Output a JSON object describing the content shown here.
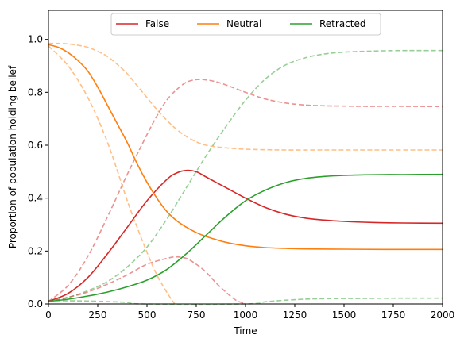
{
  "chart_data": {
    "type": "line",
    "title": "",
    "xlabel": "Time",
    "ylabel": "Proportion of population holding belief",
    "xlim": [
      0,
      2000
    ],
    "ylim": [
      0,
      1.11
    ],
    "x_ticks": [
      0,
      250,
      500,
      750,
      1000,
      1250,
      1500,
      1750,
      2000
    ],
    "x_tick_labels": [
      "0",
      "250",
      "500",
      "750",
      "1000",
      "1250",
      "1500",
      "1750",
      "2000"
    ],
    "y_ticks": [
      0.0,
      0.2,
      0.4,
      0.6,
      0.8,
      1.0
    ],
    "y_tick_labels": [
      "0.0",
      "0.2",
      "0.4",
      "0.6",
      "0.8",
      "1.0"
    ],
    "grid": false,
    "legend": {
      "placement": "upper-center",
      "entries": [
        {
          "name": "False",
          "color": "#d62728"
        },
        {
          "name": "Neutral",
          "color": "#ff7f0e"
        },
        {
          "name": "Retracted",
          "color": "#2ca02c"
        }
      ]
    },
    "series": [
      {
        "name": "False",
        "color": "#d62728",
        "style": "solid",
        "x": [
          0,
          100,
          200,
          300,
          400,
          500,
          600,
          650,
          700,
          750,
          800,
          900,
          1000,
          1100,
          1200,
          1300,
          1400,
          1500,
          1600,
          1700,
          1800,
          2000
        ],
        "y": [
          0.01,
          0.04,
          0.1,
          0.19,
          0.29,
          0.39,
          0.47,
          0.495,
          0.505,
          0.5,
          0.48,
          0.44,
          0.4,
          0.365,
          0.34,
          0.325,
          0.317,
          0.312,
          0.309,
          0.307,
          0.306,
          0.305
        ]
      },
      {
        "name": "Neutral",
        "color": "#ff7f0e",
        "style": "solid",
        "x": [
          0,
          50,
          100,
          150,
          200,
          250,
          300,
          350,
          400,
          450,
          500,
          550,
          600,
          650,
          700,
          750,
          800,
          900,
          1000,
          1100,
          1200,
          1300,
          1500,
          1700,
          2000
        ],
        "y": [
          0.98,
          0.97,
          0.95,
          0.92,
          0.88,
          0.82,
          0.75,
          0.68,
          0.61,
          0.53,
          0.46,
          0.4,
          0.35,
          0.315,
          0.29,
          0.27,
          0.255,
          0.233,
          0.22,
          0.213,
          0.21,
          0.208,
          0.207,
          0.206,
          0.206
        ]
      },
      {
        "name": "Retracted",
        "color": "#2ca02c",
        "style": "solid",
        "x": [
          0,
          100,
          200,
          300,
          400,
          500,
          600,
          700,
          800,
          900,
          1000,
          1100,
          1200,
          1300,
          1400,
          1500,
          1600,
          1700,
          1800,
          2000
        ],
        "y": [
          0.01,
          0.018,
          0.03,
          0.045,
          0.065,
          0.09,
          0.13,
          0.19,
          0.26,
          0.33,
          0.39,
          0.43,
          0.458,
          0.474,
          0.482,
          0.486,
          0.488,
          0.489,
          0.489,
          0.49
        ]
      },
      {
        "color": "#d62728",
        "style": "dashed",
        "x": [
          0,
          100,
          200,
          300,
          400,
          500,
          550,
          600,
          650,
          700,
          750,
          800,
          850,
          900,
          1000,
          1100,
          1200,
          1300,
          1400,
          1500,
          1600,
          1800,
          2000
        ],
        "y": [
          0.01,
          0.07,
          0.18,
          0.33,
          0.49,
          0.64,
          0.71,
          0.77,
          0.81,
          0.838,
          0.848,
          0.847,
          0.84,
          0.828,
          0.8,
          0.775,
          0.76,
          0.752,
          0.749,
          0.748,
          0.747,
          0.747,
          0.746
        ]
      },
      {
        "color": "#ff7f0e",
        "style": "dashed",
        "x": [
          0,
          50,
          100,
          150,
          200,
          250,
          300,
          350,
          400,
          450,
          500,
          550,
          600,
          650,
          700,
          750,
          800,
          900,
          1000,
          1100,
          1200,
          1400,
          1600,
          2000
        ],
        "y": [
          0.985,
          0.985,
          0.983,
          0.978,
          0.97,
          0.955,
          0.935,
          0.905,
          0.87,
          0.825,
          0.78,
          0.735,
          0.695,
          0.66,
          0.633,
          0.613,
          0.6,
          0.59,
          0.585,
          0.583,
          0.582,
          0.582,
          0.582,
          0.582
        ]
      },
      {
        "color": "#2ca02c",
        "style": "dashed",
        "x": [
          0,
          100,
          200,
          300,
          400,
          500,
          600,
          700,
          800,
          900,
          1000,
          1100,
          1200,
          1300,
          1400,
          1500,
          1600,
          1700,
          1800,
          2000
        ],
        "y": [
          0.01,
          0.025,
          0.05,
          0.085,
          0.14,
          0.215,
          0.32,
          0.44,
          0.56,
          0.67,
          0.77,
          0.85,
          0.902,
          0.93,
          0.945,
          0.952,
          0.955,
          0.957,
          0.958,
          0.958
        ]
      },
      {
        "color": "#ff7f0e",
        "style": "dashed",
        "x": [
          0,
          100,
          200,
          300,
          400,
          450,
          500,
          550,
          600,
          640
        ],
        "y": [
          0.975,
          0.9,
          0.78,
          0.61,
          0.39,
          0.29,
          0.195,
          0.11,
          0.045,
          0.0
        ]
      },
      {
        "color": "#d62728",
        "style": "dashed",
        "x": [
          0,
          100,
          200,
          300,
          400,
          500,
          600,
          650,
          700,
          750,
          800,
          850,
          900,
          950,
          1000
        ],
        "y": [
          0.01,
          0.025,
          0.045,
          0.075,
          0.11,
          0.15,
          0.172,
          0.178,
          0.172,
          0.15,
          0.12,
          0.08,
          0.045,
          0.015,
          0.0
        ]
      },
      {
        "color": "#2ca02c",
        "style": "dashed",
        "x": [
          0,
          100,
          200,
          300,
          400,
          480,
          1000,
          1100,
          1200,
          1300,
          1400,
          1600,
          1800,
          2000
        ],
        "y": [
          0.012,
          0.012,
          0.011,
          0.009,
          0.006,
          0.0,
          0.0,
          0.008,
          0.014,
          0.018,
          0.02,
          0.021,
          0.022,
          0.022
        ]
      }
    ]
  }
}
